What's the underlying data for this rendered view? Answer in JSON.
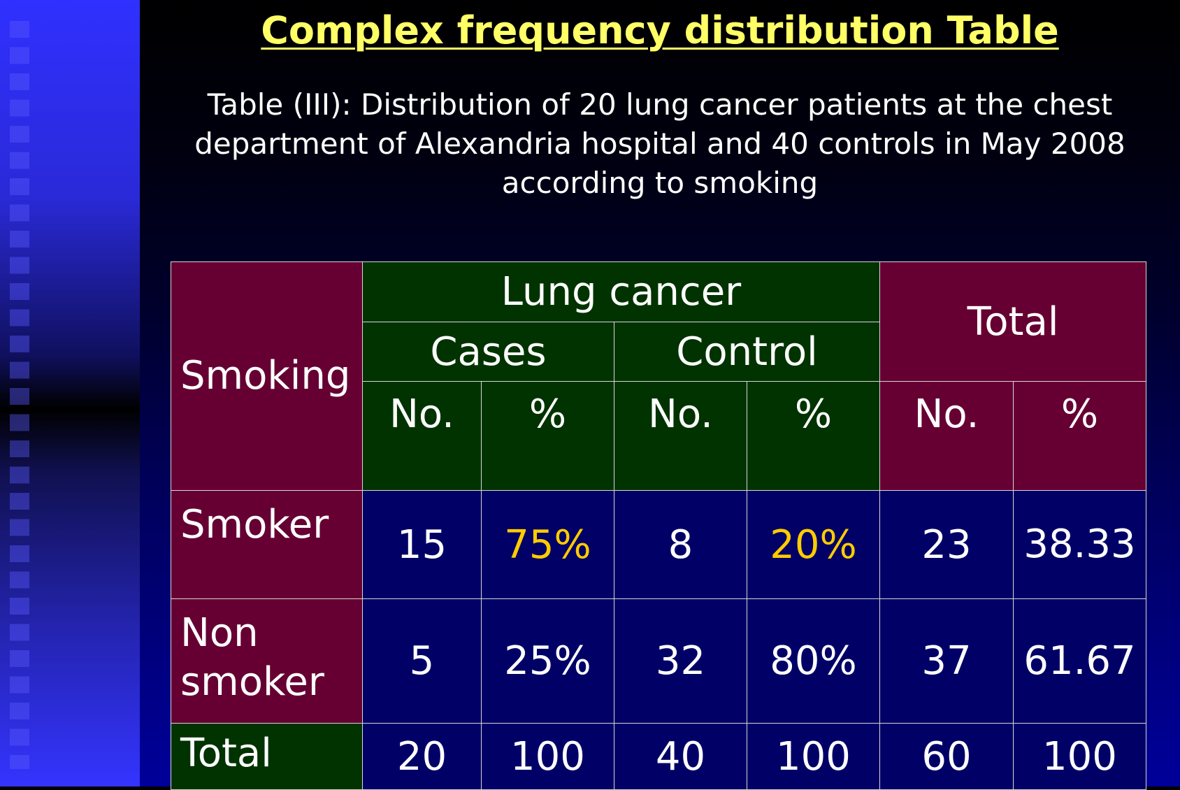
{
  "slide": {
    "title": "Complex frequency distribution Table",
    "subtitle": "Table (III): Distribution of 20 lung cancer patients at the chest department of Alexandria hospital and 40 controls in May 2008 according to smoking"
  },
  "table": {
    "header": {
      "row_label": "Smoking",
      "group_label": "Lung cancer",
      "cases_label": "Cases",
      "control_label": "Control",
      "total_label": "Total",
      "no_label": "No.",
      "pct_label": "%"
    },
    "rows": [
      {
        "label": "Smoker",
        "cases_no": "15",
        "cases_pct": "75%",
        "control_no": "8",
        "control_pct": "20%",
        "total_no": "23",
        "total_pct": "38.33"
      },
      {
        "label": "Non smoker",
        "cases_no": "5",
        "cases_pct": "25%",
        "control_no": "32",
        "control_pct": "80%",
        "total_no": "37",
        "total_pct": "61.67"
      },
      {
        "label": "Total",
        "cases_no": "20",
        "cases_pct": "100",
        "control_no": "40",
        "control_pct": "100",
        "total_no": "60",
        "total_pct": "100"
      }
    ]
  },
  "colors": {
    "title": "#ffff66",
    "highlight": "#ffcc00",
    "header_maroon": "#660033",
    "header_green": "#003300",
    "body_navy": "#000066"
  }
}
